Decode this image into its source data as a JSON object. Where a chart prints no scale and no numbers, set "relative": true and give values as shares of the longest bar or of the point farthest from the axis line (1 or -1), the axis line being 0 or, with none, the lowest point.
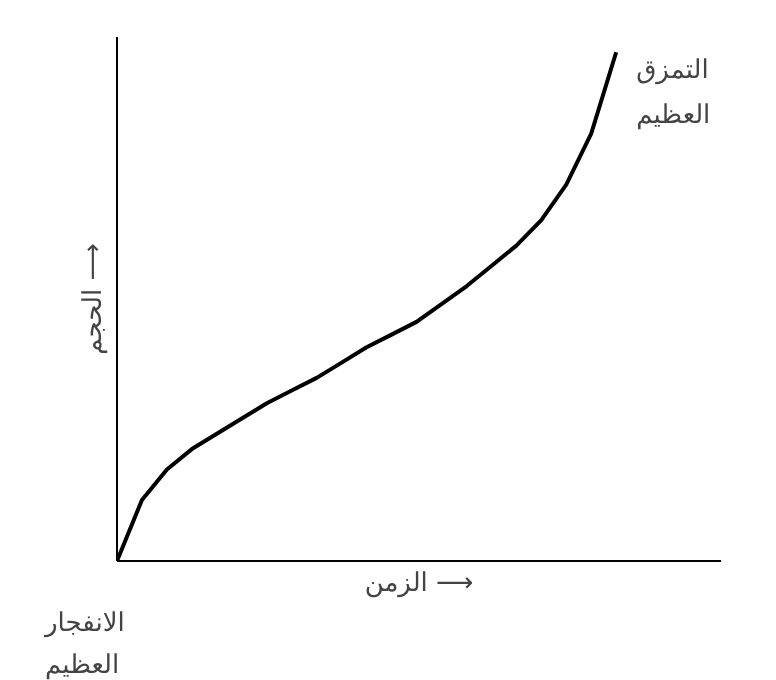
{
  "chart_data": {
    "type": "line",
    "relative": true,
    "xlabel": "الزمن ⟶",
    "ylabel": "الحجم ⟶",
    "tick_labels": false,
    "marker": "none",
    "line_style": "solid",
    "categories": [
      null,
      null,
      null,
      null,
      null,
      null,
      null,
      null,
      null,
      null,
      null,
      null,
      null,
      null,
      null,
      null,
      null,
      null,
      null,
      null,
      null
    ],
    "series": [
      {
        "color": "#000000",
        "values": [
          0,
          0.12,
          0.18,
          0.22,
          0.25,
          0.28,
          0.31,
          0.335,
          0.36,
          0.39,
          0.42,
          0.445,
          0.47,
          0.505,
          0.54,
          0.58,
          0.62,
          0.67,
          0.74,
          0.84,
          1.0
        ]
      }
    ],
    "annotations": [
      "التمزق\nالعظيم",
      "الانفجار\nالعظيم"
    ]
  }
}
